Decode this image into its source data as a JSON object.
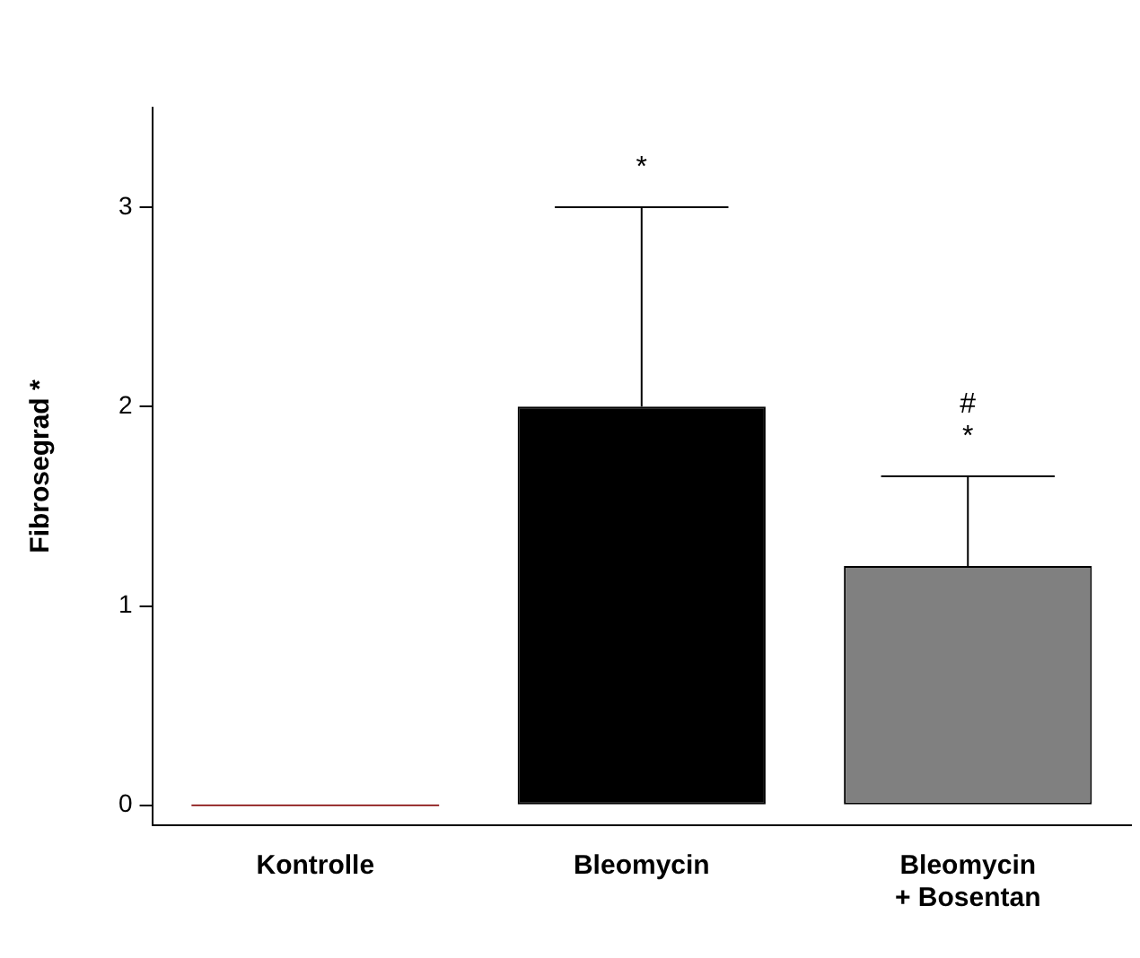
{
  "chart_data": {
    "type": "bar",
    "ylabel": "Fibrosegrad *",
    "categories": [
      "Kontrolle",
      "Bleomycin",
      "Bleomycin\n+ Bosentan"
    ],
    "values": [
      0,
      2.0,
      1.2
    ],
    "colors": [
      "#800000",
      "#000000",
      "#808080"
    ],
    "errors": [
      null,
      [
        2.0,
        3.0
      ],
      [
        1.2,
        1.65
      ]
    ],
    "ylim": [
      -0.1,
      3.5
    ],
    "yticks": [
      0,
      1,
      2,
      3
    ],
    "grid": false,
    "legend": false,
    "annotations": [
      {
        "text": "*",
        "x": "Bleomycin",
        "y": 3.0
      },
      {
        "text": "#",
        "x": "Bleomycin\n+ Bosentan",
        "y": 1.65
      },
      {
        "text": "*",
        "x": "Bleomycin\n+ Bosentan",
        "y": 1.65
      }
    ]
  }
}
